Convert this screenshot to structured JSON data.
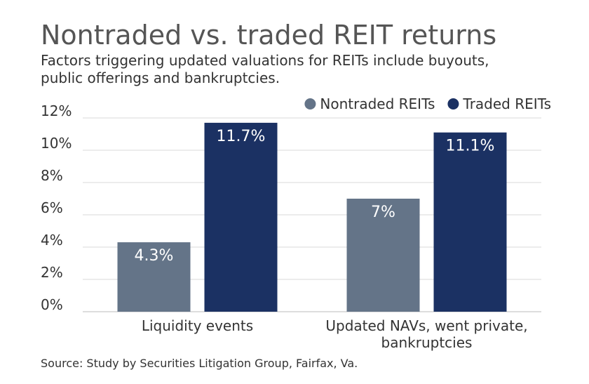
{
  "title": "Nontraded vs. traded REIT returns",
  "subtitle": "Factors triggering updated valuations for REITs include buyouts, public offerings and bankruptcies.",
  "source": "Source: Study by Securities Litigation Group, Fairfax, Va.",
  "chart_data": {
    "type": "bar",
    "categories": [
      [
        "Liquidity events"
      ],
      [
        "Updated NAVs, went private,",
        "bankruptcies"
      ]
    ],
    "series": [
      {
        "name": "Nontraded REITs",
        "values": [
          4.3,
          7
        ],
        "labels": [
          "4.3%",
          "7%"
        ],
        "color": "#647488"
      },
      {
        "name": "Traded REITs",
        "values": [
          11.7,
          11.1
        ],
        "labels": [
          "11.7%",
          "11.1%"
        ],
        "color": "#1b3163"
      }
    ],
    "ylim": [
      0,
      12
    ],
    "yticks": [
      0,
      2,
      4,
      6,
      8,
      10,
      12
    ],
    "ytick_labels": [
      "0%",
      "2%",
      "4%",
      "6%",
      "8%",
      "10%",
      "12%"
    ],
    "grid": true,
    "legend": "top-right"
  }
}
